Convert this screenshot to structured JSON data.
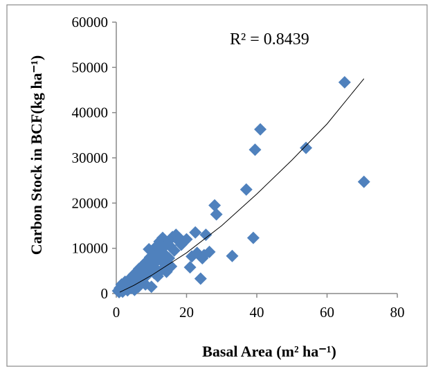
{
  "chart_data": {
    "type": "scatter",
    "title": "",
    "xlabel": "Basal Area (m² ha⁻¹)",
    "ylabel": "Carbon Stock  in BCF(kg ha⁻¹)",
    "xlim": [
      0,
      80
    ],
    "ylim": [
      0,
      60000
    ],
    "x_ticks": [
      "0",
      "20",
      "40",
      "60",
      "80"
    ],
    "y_ticks": [
      "0",
      "10000",
      "20000",
      "30000",
      "40000",
      "50000",
      "60000"
    ],
    "grid": false,
    "legend": "none",
    "annotation": "R² = 0.8439",
    "marker_color": "#4f81bd",
    "trendline": {
      "type": "power",
      "x": [
        1,
        5,
        10,
        20,
        30,
        40,
        50,
        60,
        70.5
      ],
      "y": [
        300,
        1800,
        4000,
        9000,
        15000,
        22000,
        29500,
        37500,
        47500
      ]
    },
    "series": [
      {
        "points": [
          [
            0.5,
            600
          ],
          [
            0.8,
            300
          ],
          [
            1.0,
            1200
          ],
          [
            1.2,
            800
          ],
          [
            1.5,
            2000
          ],
          [
            1.8,
            400
          ],
          [
            2.0,
            1800
          ],
          [
            2.3,
            1000
          ],
          [
            2.5,
            2600
          ],
          [
            2.8,
            1500
          ],
          [
            3.0,
            2200
          ],
          [
            3.2,
            700
          ],
          [
            3.5,
            3000
          ],
          [
            3.8,
            1800
          ],
          [
            4.0,
            2500
          ],
          [
            4.2,
            1200
          ],
          [
            4.5,
            3500
          ],
          [
            4.8,
            2000
          ],
          [
            5.0,
            4200
          ],
          [
            5.2,
            800
          ],
          [
            5.5,
            3000
          ],
          [
            5.8,
            4800
          ],
          [
            6.0,
            2400
          ],
          [
            6.3,
            1500
          ],
          [
            6.5,
            5500
          ],
          [
            6.8,
            3500
          ],
          [
            7.0,
            4500
          ],
          [
            7.3,
            2800
          ],
          [
            7.5,
            6200
          ],
          [
            7.8,
            5000
          ],
          [
            8.0,
            3800
          ],
          [
            8.3,
            2000
          ],
          [
            8.5,
            7000
          ],
          [
            8.8,
            5500
          ],
          [
            9.0,
            4200
          ],
          [
            9.3,
            9800
          ],
          [
            9.6,
            8000
          ],
          [
            9.8,
            6000
          ],
          [
            10.0,
            1500
          ],
          [
            10.3,
            6800
          ],
          [
            10.5,
            9000
          ],
          [
            10.8,
            4500
          ],
          [
            11.0,
            8800
          ],
          [
            11.2,
            5500
          ],
          [
            11.5,
            10500
          ],
          [
            11.8,
            3800
          ],
          [
            12.0,
            7500
          ],
          [
            12.3,
            11500
          ],
          [
            12.6,
            9200
          ],
          [
            12.9,
            5200
          ],
          [
            13.2,
            12300
          ],
          [
            13.5,
            10200
          ],
          [
            13.8,
            6500
          ],
          [
            14.0,
            8500
          ],
          [
            14.3,
            4800
          ],
          [
            14.6,
            11000
          ],
          [
            15.0,
            7800
          ],
          [
            15.3,
            10500
          ],
          [
            15.6,
            6000
          ],
          [
            16.0,
            12500
          ],
          [
            16.5,
            9500
          ],
          [
            17.0,
            13000
          ],
          [
            17.5,
            11800
          ],
          [
            18.0,
            12200
          ],
          [
            18.5,
            10800
          ],
          [
            19.0,
            11500
          ],
          [
            20.0,
            12000
          ],
          [
            21.0,
            5800
          ],
          [
            21.5,
            8200
          ],
          [
            22.5,
            13500
          ],
          [
            23.0,
            9000
          ],
          [
            24.0,
            3300
          ],
          [
            24.5,
            7800
          ],
          [
            25.0,
            8500
          ],
          [
            25.5,
            13000
          ],
          [
            26.5,
            9200
          ],
          [
            28.0,
            19500
          ],
          [
            28.5,
            17500
          ],
          [
            33.0,
            8300
          ],
          [
            37.0,
            23000
          ],
          [
            39.0,
            12300
          ],
          [
            39.5,
            31800
          ],
          [
            41.0,
            36300
          ],
          [
            54.0,
            32200
          ],
          [
            65.0,
            46700
          ],
          [
            70.5,
            24700
          ]
        ]
      }
    ]
  }
}
